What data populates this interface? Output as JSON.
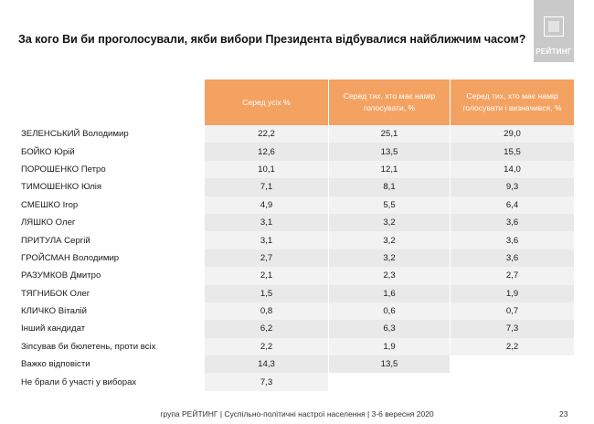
{
  "title": "За кого Ви би проголосували, якби вибори Президента відбувалися найближчим часом?",
  "logo": {
    "text": "РЕЙТИНГ"
  },
  "colors": {
    "header_bg": "#f4a262",
    "row_bg": "#f2f2f2"
  },
  "columns": [
    "Серед усіх %",
    "Серед тих, хто має намір голосувати, %",
    "Серед тих, хто має намір голосувати і визначився, %"
  ],
  "rows": [
    {
      "label": "ЗЕЛЕНСЬКИЙ Володимир",
      "values": [
        "22,2",
        "25,1",
        "29,0"
      ]
    },
    {
      "label": "БОЙКО Юрій",
      "values": [
        "12,6",
        "13,5",
        "15,5"
      ]
    },
    {
      "label": "ПОРОШЕНКО Петро",
      "values": [
        "10,1",
        "12,1",
        "14,0"
      ]
    },
    {
      "label": "ТИМОШЕНКО Юлія",
      "values": [
        "7,1",
        "8,1",
        "9,3"
      ]
    },
    {
      "label": "СМЕШКО Ігор",
      "values": [
        "4,9",
        "5,5",
        "6,4"
      ]
    },
    {
      "label": "ЛЯШКО Олег",
      "values": [
        "3,1",
        "3,2",
        "3,6"
      ]
    },
    {
      "label": "ПРИТУЛА Сергій",
      "values": [
        "3,1",
        "3,2",
        "3,6"
      ]
    },
    {
      "label": "ГРОЙСМАН Володимир",
      "values": [
        "2,7",
        "3,2",
        "3,6"
      ]
    },
    {
      "label": "РАЗУМКОВ Дмитро",
      "values": [
        "2,1",
        "2,3",
        "2,7"
      ]
    },
    {
      "label": "ТЯГНИБОК Олег",
      "values": [
        "1,5",
        "1,6",
        "1,9"
      ]
    },
    {
      "label": "КЛИЧКО Віталій",
      "values": [
        "0,8",
        "0,6",
        "0,7"
      ]
    },
    {
      "label": "Інший кандидат",
      "values": [
        "6,2",
        "6,3",
        "7,3"
      ]
    },
    {
      "label": "Зіпсував би бюлетень, проти всіх",
      "values": [
        "2,2",
        "1,9",
        "2,2"
      ]
    },
    {
      "label": "Важко відповісти",
      "values": [
        "14,3",
        "13,5",
        ""
      ]
    },
    {
      "label": "Не брали б участі у виборах",
      "values": [
        "7,3",
        "",
        ""
      ]
    }
  ],
  "footer": "група РЕЙТИНГ | Суспільно-політичні настрої населення | 3-6 вересня 2020",
  "page_number": "23"
}
